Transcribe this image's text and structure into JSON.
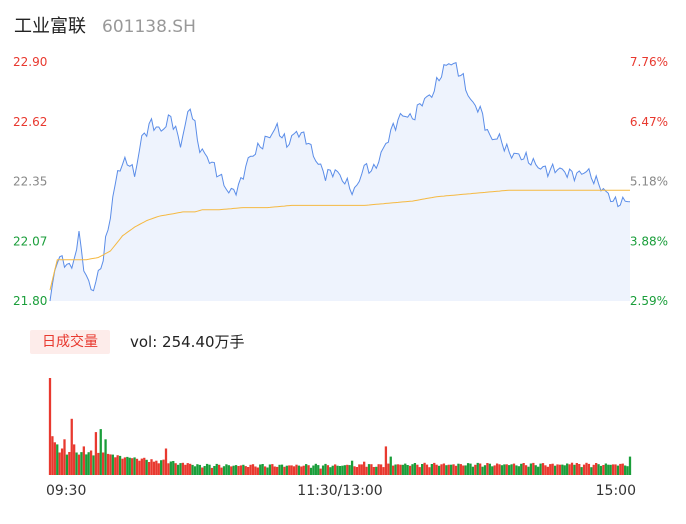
{
  "header": {
    "name": "工业富联",
    "code": "601138.SH"
  },
  "volume_panel": {
    "label": "日成交量",
    "readout": "vol: 254.40万手"
  },
  "colors": {
    "price_line": "#5b8de8",
    "price_fill": "#eef3fd",
    "avg_line": "#f5b942",
    "up": "#e8392f",
    "down": "#1a9e3a",
    "neutral_tick": "#888888"
  },
  "chart_data": [
    {
      "type": "line",
      "title": "",
      "x_ticks": [
        "09:30",
        "11:30/13:00",
        "15:00"
      ],
      "y_ticks": [
        "22.90",
        "22.62",
        "22.35",
        "22.07",
        "21.80"
      ],
      "y_right_ticks": [
        "7.76%",
        "6.47%",
        "5.18%",
        "3.88%",
        "2.59%"
      ],
      "ylim": [
        21.8,
        22.9
      ],
      "x_count": 241,
      "price_keyframes": [
        [
          0,
          21.8
        ],
        [
          3,
          22.0
        ],
        [
          6,
          21.98
        ],
        [
          9,
          21.95
        ],
        [
          12,
          22.1
        ],
        [
          15,
          21.9
        ],
        [
          18,
          21.85
        ],
        [
          22,
          22.0
        ],
        [
          25,
          22.2
        ],
        [
          28,
          22.4
        ],
        [
          32,
          22.45
        ],
        [
          35,
          22.38
        ],
        [
          38,
          22.55
        ],
        [
          42,
          22.62
        ],
        [
          46,
          22.58
        ],
        [
          50,
          22.65
        ],
        [
          54,
          22.52
        ],
        [
          58,
          22.7
        ],
        [
          62,
          22.5
        ],
        [
          66,
          22.45
        ],
        [
          70,
          22.38
        ],
        [
          74,
          22.3
        ],
        [
          78,
          22.32
        ],
        [
          82,
          22.45
        ],
        [
          86,
          22.5
        ],
        [
          90,
          22.55
        ],
        [
          94,
          22.6
        ],
        [
          98,
          22.52
        ],
        [
          102,
          22.58
        ],
        [
          106,
          22.55
        ],
        [
          110,
          22.45
        ],
        [
          114,
          22.38
        ],
        [
          118,
          22.4
        ],
        [
          122,
          22.35
        ],
        [
          126,
          22.3
        ],
        [
          130,
          22.42
        ],
        [
          134,
          22.4
        ],
        [
          138,
          22.5
        ],
        [
          142,
          22.6
        ],
        [
          146,
          22.66
        ],
        [
          150,
          22.64
        ],
        [
          154,
          22.72
        ],
        [
          158,
          22.75
        ],
        [
          162,
          22.85
        ],
        [
          165,
          22.9
        ],
        [
          168,
          22.88
        ],
        [
          171,
          22.82
        ],
        [
          174,
          22.72
        ],
        [
          178,
          22.68
        ],
        [
          182,
          22.55
        ],
        [
          186,
          22.55
        ],
        [
          190,
          22.48
        ],
        [
          194,
          22.47
        ],
        [
          198,
          22.45
        ],
        [
          202,
          22.42
        ],
        [
          206,
          22.4
        ],
        [
          210,
          22.41
        ],
        [
          214,
          22.39
        ],
        [
          218,
          22.38
        ],
        [
          222,
          22.4
        ],
        [
          226,
          22.35
        ],
        [
          230,
          22.3
        ],
        [
          234,
          22.25
        ],
        [
          238,
          22.26
        ],
        [
          241,
          22.27
        ]
      ],
      "avg_keyframes": [
        [
          0,
          21.85
        ],
        [
          3,
          21.99
        ],
        [
          6,
          21.99
        ],
        [
          10,
          21.99
        ],
        [
          15,
          21.99
        ],
        [
          20,
          22.0
        ],
        [
          25,
          22.03
        ],
        [
          30,
          22.1
        ],
        [
          35,
          22.14
        ],
        [
          40,
          22.17
        ],
        [
          45,
          22.19
        ],
        [
          50,
          22.2
        ],
        [
          55,
          22.21
        ],
        [
          60,
          22.21
        ],
        [
          63,
          22.22
        ],
        [
          70,
          22.22
        ],
        [
          80,
          22.23
        ],
        [
          90,
          22.23
        ],
        [
          100,
          22.24
        ],
        [
          110,
          22.24
        ],
        [
          120,
          22.24
        ],
        [
          130,
          22.24
        ],
        [
          140,
          22.25
        ],
        [
          150,
          22.26
        ],
        [
          160,
          22.28
        ],
        [
          170,
          22.29
        ],
        [
          180,
          22.3
        ],
        [
          190,
          22.31
        ],
        [
          200,
          22.31
        ],
        [
          210,
          22.31
        ],
        [
          220,
          22.31
        ],
        [
          230,
          22.31
        ],
        [
          241,
          22.31
        ]
      ]
    },
    {
      "type": "bar",
      "title": "",
      "ylabel": "vol",
      "spikes": [
        {
          "i": 0,
          "v": 95,
          "c": "up"
        },
        {
          "i": 1,
          "v": 38,
          "c": "up"
        },
        {
          "i": 2,
          "v": 32,
          "c": "up"
        },
        {
          "i": 3,
          "v": 30,
          "c": "down"
        },
        {
          "i": 4,
          "v": 22,
          "c": "up"
        },
        {
          "i": 5,
          "v": 26,
          "c": "up"
        },
        {
          "i": 6,
          "v": 35,
          "c": "up"
        },
        {
          "i": 7,
          "v": 20,
          "c": "down"
        },
        {
          "i": 9,
          "v": 55,
          "c": "up"
        },
        {
          "i": 10,
          "v": 30,
          "c": "up"
        },
        {
          "i": 11,
          "v": 22,
          "c": "down"
        },
        {
          "i": 12,
          "v": 20,
          "c": "up"
        },
        {
          "i": 14,
          "v": 28,
          "c": "up"
        },
        {
          "i": 17,
          "v": 24,
          "c": "up"
        },
        {
          "i": 19,
          "v": 42,
          "c": "up"
        },
        {
          "i": 21,
          "v": 45,
          "c": "down"
        },
        {
          "i": 22,
          "v": 22,
          "c": "up"
        },
        {
          "i": 23,
          "v": 35,
          "c": "down"
        },
        {
          "i": 26,
          "v": 20,
          "c": "down"
        },
        {
          "i": 30,
          "v": 16,
          "c": "up"
        },
        {
          "i": 37,
          "v": 14,
          "c": "up"
        },
        {
          "i": 43,
          "v": 13,
          "c": "up"
        },
        {
          "i": 48,
          "v": 26,
          "c": "up"
        },
        {
          "i": 53,
          "v": 10,
          "c": "down"
        },
        {
          "i": 123,
          "v": 10,
          "c": "up"
        },
        {
          "i": 125,
          "v": 14,
          "c": "down"
        },
        {
          "i": 130,
          "v": 13,
          "c": "up"
        },
        {
          "i": 139,
          "v": 28,
          "c": "up"
        },
        {
          "i": 141,
          "v": 18,
          "c": "down"
        },
        {
          "i": 176,
          "v": 10,
          "c": "up"
        },
        {
          "i": 206,
          "v": 8,
          "c": "up"
        },
        {
          "i": 216,
          "v": 12,
          "c": "up"
        },
        {
          "i": 225,
          "v": 10,
          "c": "up"
        },
        {
          "i": 240,
          "v": 18,
          "c": "down"
        }
      ]
    }
  ]
}
